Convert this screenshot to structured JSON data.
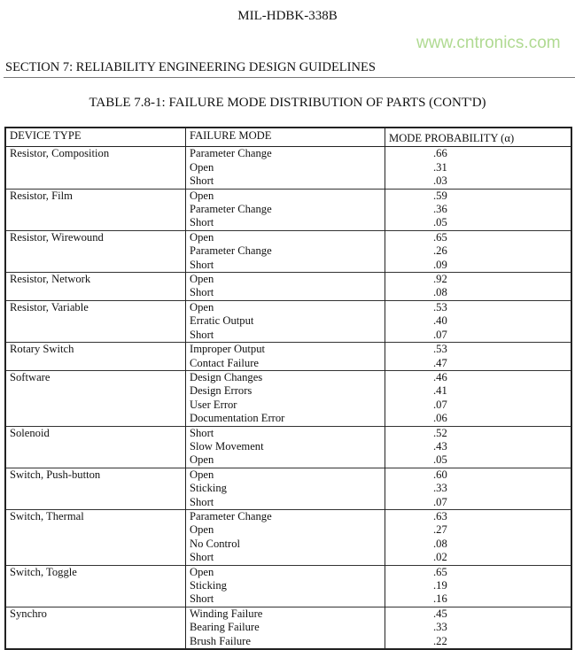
{
  "document": {
    "doc_id": "MIL-HDBK-338B",
    "section": "SECTION 7:  RELIABILITY ENGINEERING DESIGN GUIDELINES",
    "table_title": "TABLE 7.8-1:  FAILURE MODE DISTRIBUTION OF PARTS (CONT'D)"
  },
  "table": {
    "headers": [
      "DEVICE TYPE",
      "FAILURE MODE",
      "MODE PROBABILITY (α)"
    ],
    "rows": [
      {
        "device": "Resistor, Composition",
        "modes": [
          "Parameter Change",
          "Open",
          "Short"
        ],
        "probs": [
          ".66",
          ".31",
          ".03"
        ]
      },
      {
        "device": "Resistor, Film",
        "modes": [
          "Open",
          "Parameter Change",
          "Short"
        ],
        "probs": [
          ".59",
          ".36",
          ".05"
        ]
      },
      {
        "device": "Resistor, Wirewound",
        "modes": [
          "Open",
          "Parameter Change",
          "Short"
        ],
        "probs": [
          ".65",
          ".26",
          ".09"
        ]
      },
      {
        "device": "Resistor, Network",
        "modes": [
          "Open",
          "Short"
        ],
        "probs": [
          ".92",
          ".08"
        ]
      },
      {
        "device": "Resistor, Variable",
        "modes": [
          "Open",
          "Erratic Output",
          "Short"
        ],
        "probs": [
          ".53",
          ".40",
          ".07"
        ]
      },
      {
        "device": "Rotary Switch",
        "modes": [
          "Improper Output",
          "Contact Failure"
        ],
        "probs": [
          ".53",
          ".47"
        ]
      },
      {
        "device": "Software",
        "modes": [
          "Design Changes",
          "Design Errors",
          "User Error",
          "Documentation Error"
        ],
        "probs": [
          ".46",
          ".41",
          ".07",
          ".06"
        ]
      },
      {
        "device": "Solenoid",
        "modes": [
          "Short",
          "Slow Movement",
          "Open"
        ],
        "probs": [
          ".52",
          ".43",
          ".05"
        ]
      },
      {
        "device": "Switch, Push-button",
        "modes": [
          "Open",
          "Sticking",
          "Short"
        ],
        "probs": [
          ".60",
          ".33",
          ".07"
        ]
      },
      {
        "device": "Switch, Thermal",
        "modes": [
          "Parameter Change",
          "Open",
          "No Control",
          "Short"
        ],
        "probs": [
          ".63",
          ".27",
          ".08",
          ".02"
        ]
      },
      {
        "device": "Switch, Toggle",
        "modes": [
          "Open",
          "Sticking",
          "Short"
        ],
        "probs": [
          ".65",
          ".19",
          ".16"
        ]
      },
      {
        "device": "Synchro",
        "modes": [
          "Winding Failure",
          "Bearing Failure",
          "Brush Failure"
        ],
        "probs": [
          ".45",
          ".33",
          ".22"
        ]
      }
    ]
  },
  "watermark": "www.cntronics.com"
}
